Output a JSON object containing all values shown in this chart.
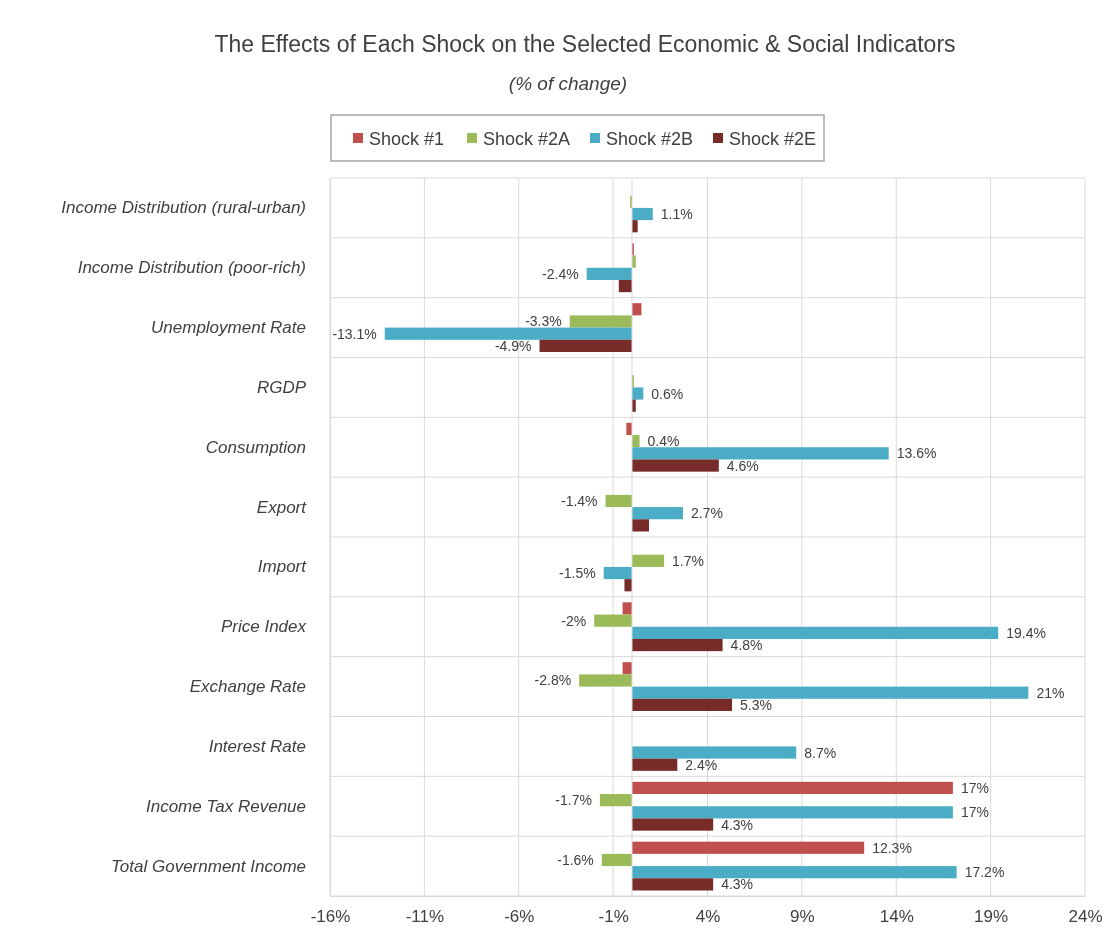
{
  "chart_data": {
    "type": "bar",
    "orientation": "horizontal",
    "title": "The Effects of Each Shock on the Selected Economic & Social Indicators",
    "subtitle": "(% of change)",
    "categories": [
      "Income Distribution (rural-urban)",
      "Income Distribution (poor-rich)",
      "Unemployment Rate",
      "RGDP",
      "Consumption",
      "Export",
      "Import",
      "Price Index",
      "Exchange Rate",
      "Interest Rate",
      "Income Tax Revenue",
      "Total Government Income"
    ],
    "series": [
      {
        "name": "Shock #1",
        "color": "#c0504d",
        "values": [
          0,
          0.1,
          0.5,
          0,
          -0.3,
          0,
          0,
          -0.5,
          -0.5,
          0,
          17,
          12.3
        ],
        "value_labels": [
          null,
          null,
          null,
          null,
          null,
          null,
          null,
          null,
          null,
          null,
          "17%",
          "12.3%"
        ]
      },
      {
        "name": "Shock #2A",
        "color": "#9bbb59",
        "values": [
          -0.1,
          0.2,
          -3.3,
          0.1,
          0.4,
          -1.4,
          1.7,
          -2,
          -2.8,
          0,
          -1.7,
          -1.6
        ],
        "value_labels": [
          null,
          null,
          "-3.3%",
          null,
          "0.4%",
          "-1.4%",
          "1.7%",
          "-2%",
          "-2.8%",
          null,
          "-1.7%",
          "-1.6%"
        ]
      },
      {
        "name": "Shock #2B",
        "color": "#4bacc6",
        "values": [
          1.1,
          -2.4,
          -13.1,
          0.6,
          13.6,
          2.7,
          -1.5,
          19.4,
          21,
          8.7,
          17,
          17.2
        ],
        "value_labels": [
          "1.1%",
          "-2.4%",
          "-13.1%",
          "0.6%",
          "13.6%",
          "2.7%",
          "-1.5%",
          "19.4%",
          "21%",
          "8.7%",
          "17%",
          "17.2%"
        ]
      },
      {
        "name": "Shock #2E",
        "color": "#772c2a",
        "values": [
          0.3,
          -0.7,
          -4.9,
          0.2,
          4.6,
          0.9,
          -0.4,
          4.8,
          5.3,
          2.4,
          4.3,
          4.3
        ],
        "value_labels": [
          null,
          null,
          "-4.9%",
          null,
          "4.6%",
          null,
          null,
          "4.8%",
          "5.3%",
          "2.4%",
          "4.3%",
          "4.3%"
        ]
      }
    ],
    "xlim": [
      -16,
      24
    ],
    "xticks": [
      {
        "value": -16,
        "label": "-16%"
      },
      {
        "value": -11,
        "label": "-11%"
      },
      {
        "value": -6,
        "label": "-6%"
      },
      {
        "value": -1,
        "label": "-1%"
      },
      {
        "value": 4,
        "label": "4%"
      },
      {
        "value": 9,
        "label": "9%"
      },
      {
        "value": 14,
        "label": "14%"
      },
      {
        "value": 19,
        "label": "19%"
      },
      {
        "value": 24,
        "label": "24%"
      }
    ],
    "grid": true,
    "legend": "top"
  }
}
